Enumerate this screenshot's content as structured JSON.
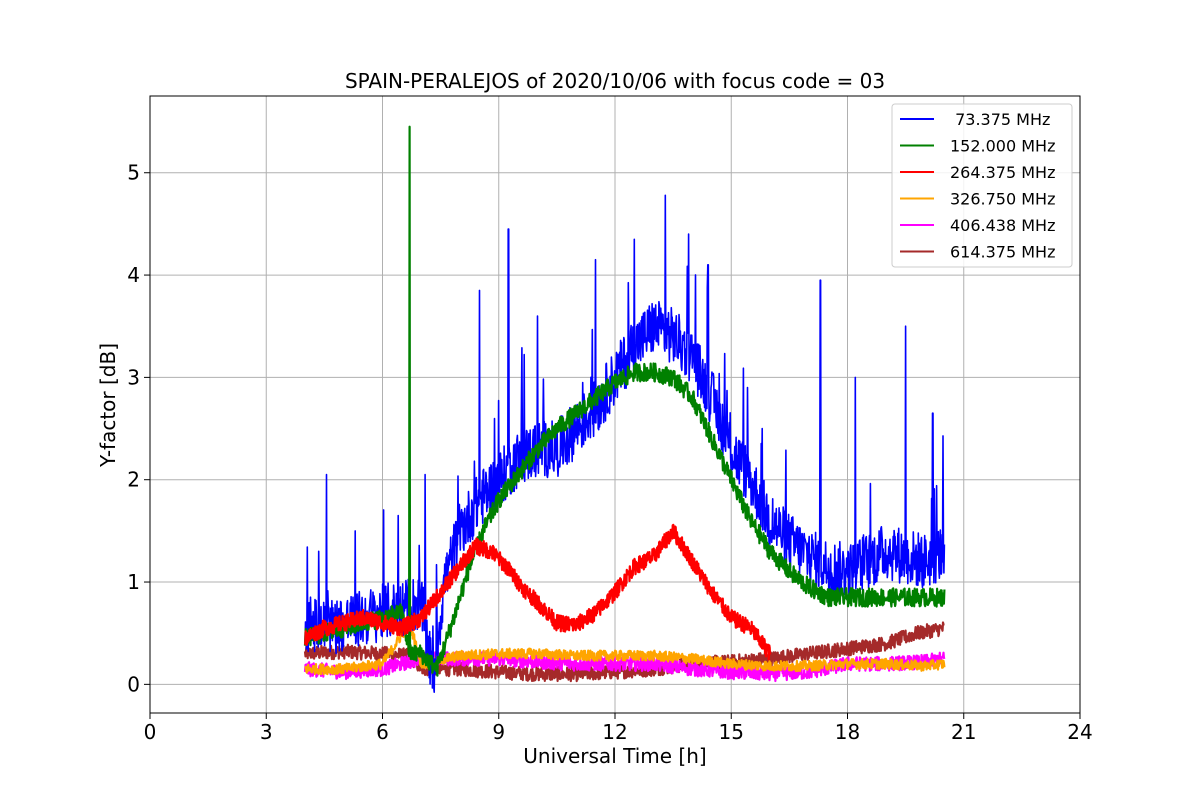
{
  "chart_data": {
    "type": "line",
    "title": "SPAIN-PERALEJOS of 2020/10/06 with focus code = 03",
    "xlabel": "Universal Time [h]",
    "ylabel": "Y-factor [dB]",
    "xlim": [
      0,
      24
    ],
    "ylim": [
      -0.28,
      5.75
    ],
    "xticks": [
      0,
      3,
      6,
      9,
      12,
      15,
      18,
      21,
      24
    ],
    "yticks": [
      0,
      1,
      2,
      3,
      4,
      5
    ],
    "grid": true,
    "legend_position": "top-right",
    "series": [
      {
        "name": " 73.375 MHz",
        "color": "#0000ff",
        "x": [
          4.0,
          4.5,
          5.0,
          5.5,
          6.0,
          6.5,
          7.0,
          7.3,
          7.6,
          8.0,
          8.5,
          9.0,
          9.5,
          10.0,
          10.5,
          11.0,
          11.5,
          12.0,
          12.5,
          13.0,
          13.5,
          14.0,
          14.5,
          15.0,
          15.5,
          16.0,
          16.5,
          17.0,
          17.5,
          18.0,
          18.5,
          19.0,
          19.5,
          20.0,
          20.5
        ],
        "y": [
          0.6,
          0.55,
          0.6,
          0.65,
          0.7,
          0.75,
          0.8,
          0.05,
          1.0,
          1.5,
          1.8,
          2.0,
          2.2,
          2.3,
          2.3,
          2.5,
          2.7,
          3.0,
          3.3,
          3.5,
          3.4,
          3.2,
          2.8,
          2.3,
          2.0,
          1.6,
          1.4,
          1.25,
          1.15,
          1.1,
          1.2,
          1.3,
          1.25,
          1.2,
          1.3
        ],
        "spikes": [
          [
            4.55,
            2.05
          ],
          [
            5.3,
            1.5
          ],
          [
            6.4,
            1.65
          ],
          [
            7.1,
            2.05
          ],
          [
            8.5,
            3.85
          ],
          [
            9.25,
            4.45
          ],
          [
            10.0,
            3.6
          ],
          [
            11.5,
            4.15
          ],
          [
            12.5,
            4.35
          ],
          [
            13.3,
            4.78
          ],
          [
            13.9,
            4.4
          ],
          [
            14.4,
            4.1
          ],
          [
            15.8,
            2.5
          ],
          [
            17.3,
            3.95
          ],
          [
            18.2,
            3.0
          ],
          [
            19.5,
            3.5
          ],
          [
            20.2,
            2.65
          ]
        ]
      },
      {
        "name": "152.000 MHz",
        "color": "#008000",
        "x": [
          4.0,
          4.5,
          5.0,
          5.5,
          6.0,
          6.5,
          6.7,
          7.0,
          7.4,
          7.8,
          8.2,
          8.6,
          9.0,
          9.5,
          10.0,
          10.5,
          11.0,
          11.5,
          12.0,
          12.5,
          13.0,
          13.5,
          14.0,
          14.5,
          15.0,
          15.5,
          16.0,
          16.5,
          17.0,
          17.5,
          18.0,
          18.5,
          19.0,
          19.5,
          20.0,
          20.5
        ],
        "y": [
          0.45,
          0.5,
          0.55,
          0.6,
          0.65,
          0.7,
          0.3,
          0.3,
          0.15,
          0.6,
          1.1,
          1.5,
          1.8,
          2.05,
          2.3,
          2.5,
          2.65,
          2.8,
          2.95,
          3.05,
          3.05,
          3.0,
          2.8,
          2.4,
          2.0,
          1.6,
          1.3,
          1.1,
          0.95,
          0.85,
          0.85,
          0.85,
          0.85,
          0.85,
          0.85,
          0.85
        ],
        "spikes": [
          [
            6.7,
            5.45
          ]
        ]
      },
      {
        "name": "264.375 MHz",
        "color": "#ff0000",
        "x": [
          4.0,
          4.5,
          5.0,
          5.5,
          6.0,
          6.5,
          7.0,
          7.5,
          8.0,
          8.4,
          8.8,
          9.2,
          9.6,
          10.0,
          10.5,
          11.0,
          11.5,
          12.0,
          12.5,
          13.0,
          13.5,
          14.0,
          14.5,
          15.0,
          15.5,
          16.0
        ],
        "y": [
          0.45,
          0.55,
          0.6,
          0.65,
          0.6,
          0.55,
          0.65,
          0.9,
          1.15,
          1.35,
          1.3,
          1.15,
          0.95,
          0.8,
          0.6,
          0.58,
          0.7,
          0.9,
          1.15,
          1.25,
          1.5,
          1.2,
          0.9,
          0.65,
          0.55,
          0.3
        ]
      },
      {
        "name": "326.750 MHz",
        "color": "#ffa500",
        "x": [
          4.0,
          5.0,
          6.0,
          6.7,
          7.0,
          8.0,
          9.0,
          10.0,
          11.0,
          12.0,
          13.0,
          14.0,
          15.0,
          16.0,
          17.0,
          18.0,
          19.0,
          20.0,
          20.5
        ],
        "y": [
          0.15,
          0.15,
          0.2,
          0.6,
          0.2,
          0.28,
          0.3,
          0.3,
          0.28,
          0.28,
          0.28,
          0.25,
          0.2,
          0.18,
          0.18,
          0.2,
          0.2,
          0.18,
          0.2
        ]
      },
      {
        "name": "406.438 MHz",
        "color": "#ff00ff",
        "x": [
          4.0,
          5.0,
          6.0,
          7.0,
          8.0,
          9.0,
          10.0,
          11.0,
          12.0,
          13.0,
          14.0,
          15.0,
          16.0,
          17.0,
          18.0,
          19.0,
          20.0,
          20.5
        ],
        "y": [
          0.15,
          0.12,
          0.15,
          0.25,
          0.25,
          0.25,
          0.22,
          0.2,
          0.2,
          0.2,
          0.15,
          0.12,
          0.1,
          0.12,
          0.2,
          0.2,
          0.22,
          0.25
        ]
      },
      {
        "name": "614.375 MHz",
        "color": "#a52a2a",
        "x": [
          4.0,
          5.0,
          6.0,
          6.7,
          7.0,
          8.0,
          9.0,
          10.0,
          11.0,
          12.0,
          13.0,
          14.0,
          15.0,
          16.0,
          17.0,
          18.0,
          19.0,
          19.8,
          20.5
        ],
        "y": [
          0.3,
          0.32,
          0.3,
          0.28,
          0.15,
          0.15,
          0.12,
          0.1,
          0.1,
          0.12,
          0.15,
          0.2,
          0.22,
          0.25,
          0.3,
          0.35,
          0.4,
          0.5,
          0.55
        ]
      }
    ]
  }
}
